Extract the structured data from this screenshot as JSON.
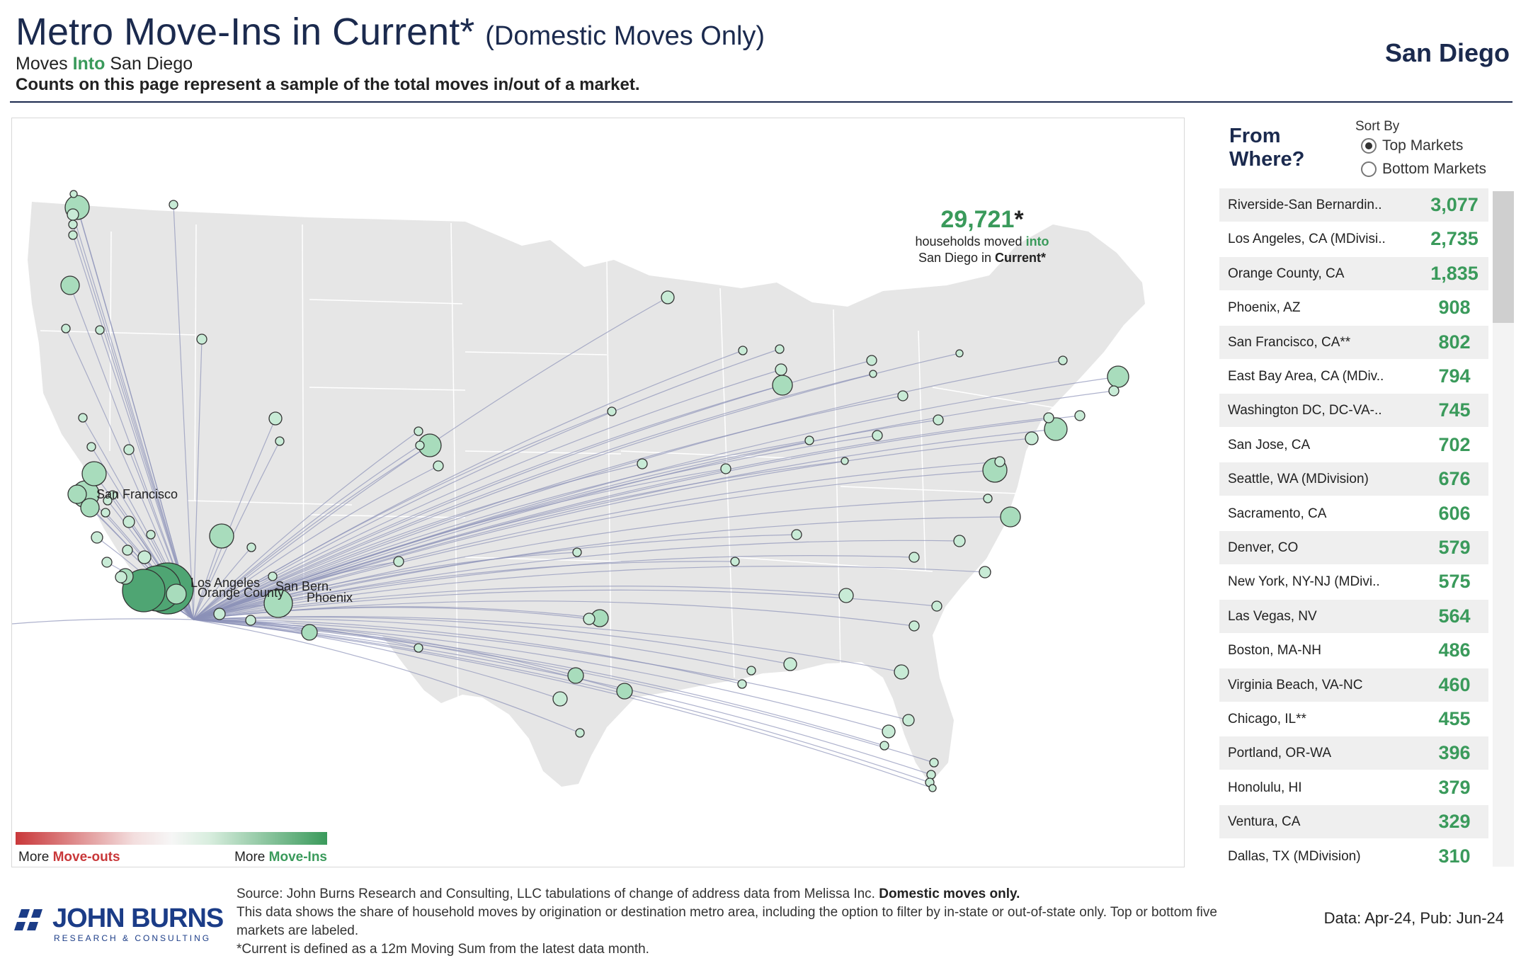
{
  "header": {
    "title_main": "Metro Move-Ins in Current*",
    "title_sub": "(Domestic Moves Only)",
    "moves_prefix": "Moves",
    "moves_into": "Into",
    "moves_metro": "San Diego",
    "counts_note": "Counts on this page represent a sample of the total moves in/out of a market.",
    "metro_name": "San Diego"
  },
  "map": {
    "total_value": "29,721",
    "total_asterisk": "*",
    "total_line1_prefix": "households moved",
    "total_line1_into": "into",
    "total_line2_prefix": "San Diego in",
    "total_line2_bold": "Current*",
    "labels": {
      "san_francisco": "San Francisco",
      "los_angeles": "Los Angeles",
      "orange_county": "Orange County",
      "san_bern": "San Bern.",
      "phoenix": "Phoenix"
    },
    "colors": {
      "land": "#e6e6e6",
      "border": "#ffffff",
      "flow_line": "#8c91b8",
      "bubble_fill": "#c8ebd6",
      "bubble_large": "#4fa573",
      "bubble_stroke": "#333333"
    }
  },
  "legend": {
    "left_prefix": "More",
    "left_emph": "Move-outs",
    "right_prefix": "More",
    "right_emph": "Move-Ins",
    "color_outs": "#c9383a",
    "color_ins": "#3a9a5b"
  },
  "side": {
    "from_where": "From Where?",
    "sort_by": "Sort By",
    "opt_top": "Top Markets",
    "opt_bottom": "Bottom Markets",
    "selected": "top",
    "markets": [
      {
        "name": "Riverside-San Bernardin..",
        "value": "3,077"
      },
      {
        "name": "Los Angeles, CA (MDivisi..",
        "value": "2,735"
      },
      {
        "name": "Orange County, CA",
        "value": "1,835"
      },
      {
        "name": "Phoenix, AZ",
        "value": "908"
      },
      {
        "name": "San Francisco, CA**",
        "value": "802"
      },
      {
        "name": "East Bay Area, CA (MDiv..",
        "value": "794"
      },
      {
        "name": "Washington DC, DC-VA-..",
        "value": "745"
      },
      {
        "name": "San Jose, CA",
        "value": "702"
      },
      {
        "name": "Seattle, WA (MDivision)",
        "value": "676"
      },
      {
        "name": "Sacramento, CA",
        "value": "606"
      },
      {
        "name": "Denver, CO",
        "value": "579"
      },
      {
        "name": "New York, NY-NJ (MDivi..",
        "value": "575"
      },
      {
        "name": "Las Vegas, NV",
        "value": "564"
      },
      {
        "name": "Boston, MA-NH",
        "value": "486"
      },
      {
        "name": "Virginia Beach, VA-NC",
        "value": "460"
      },
      {
        "name": "Chicago, IL**",
        "value": "455"
      },
      {
        "name": "Portland, OR-WA",
        "value": "396"
      },
      {
        "name": "Honolulu, HI",
        "value": "379"
      },
      {
        "name": "Ventura, CA",
        "value": "329"
      },
      {
        "name": "Dallas, TX (MDivision)",
        "value": "310"
      }
    ]
  },
  "footer": {
    "logo_name": "JOHN BURNS",
    "logo_tag": "RESEARCH & CONSULTING",
    "source_prefix": "Source: John Burns Research and Consulting, LLC tabulations of change of address data from Melissa Inc.",
    "source_bold": "Domestic moves only.",
    "source_line2": "This data shows the share of household moves by origination or destination metro area, including the option to filter by in-state or out-of-state only. Top or bottom five markets are labeled.",
    "source_line3": "*Current is defined as a 12m Moving Sum from the latest data month.",
    "data_pub": "Data: Apr-24, Pub: Jun-24",
    "logo_color": "#1b3c87"
  }
}
